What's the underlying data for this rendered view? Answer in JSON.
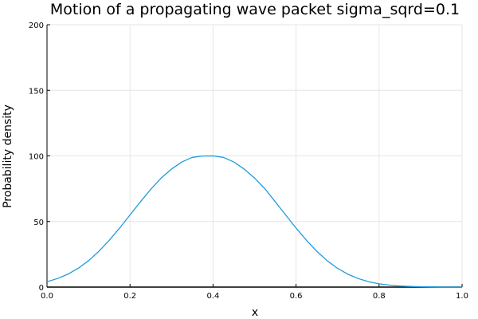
{
  "chart_data": {
    "type": "line",
    "title": "Motion of a propagating wave packet sigma_sqrd=0.1",
    "xlabel": "x",
    "ylabel": "Probability density",
    "xlim": [
      0,
      1
    ],
    "ylim": [
      0,
      200
    ],
    "x_ticks": [
      0.0,
      0.2,
      0.4,
      0.6,
      0.8,
      1.0
    ],
    "x_tick_labels": [
      "0.0",
      "0.2",
      "0.4",
      "0.6",
      "0.8",
      "1.0"
    ],
    "y_ticks": [
      0,
      50,
      100,
      150,
      200
    ],
    "y_tick_labels": [
      "0",
      "50",
      "100",
      "150",
      "200"
    ],
    "grid": true,
    "legend": "none",
    "series": [
      {
        "color": "#1f9bdb",
        "x": [
          0.0,
          0.025,
          0.05,
          0.075,
          0.1,
          0.125,
          0.15,
          0.175,
          0.2,
          0.225,
          0.25,
          0.275,
          0.3,
          0.325,
          0.35,
          0.375,
          0.4,
          0.425,
          0.45,
          0.475,
          0.5,
          0.525,
          0.55,
          0.575,
          0.6,
          0.625,
          0.65,
          0.675,
          0.7,
          0.725,
          0.75,
          0.775,
          0.8,
          0.825,
          0.85,
          0.875,
          0.9,
          0.925,
          0.95,
          0.975,
          1.0
        ],
        "y": [
          4.1,
          6.5,
          9.8,
          14.3,
          20.1,
          27.3,
          35.7,
          45.0,
          55.0,
          65.0,
          74.6,
          83.1,
          90.0,
          95.4,
          98.9,
          99.9,
          100.0,
          98.9,
          95.4,
          90.0,
          83.1,
          75.0,
          65.0,
          55.0,
          45.0,
          35.7,
          27.3,
          20.1,
          14.3,
          9.8,
          6.5,
          4.1,
          2.5,
          1.5,
          0.8,
          0.5,
          0.3,
          0.2,
          0.1,
          0.1,
          0.0
        ]
      }
    ]
  }
}
